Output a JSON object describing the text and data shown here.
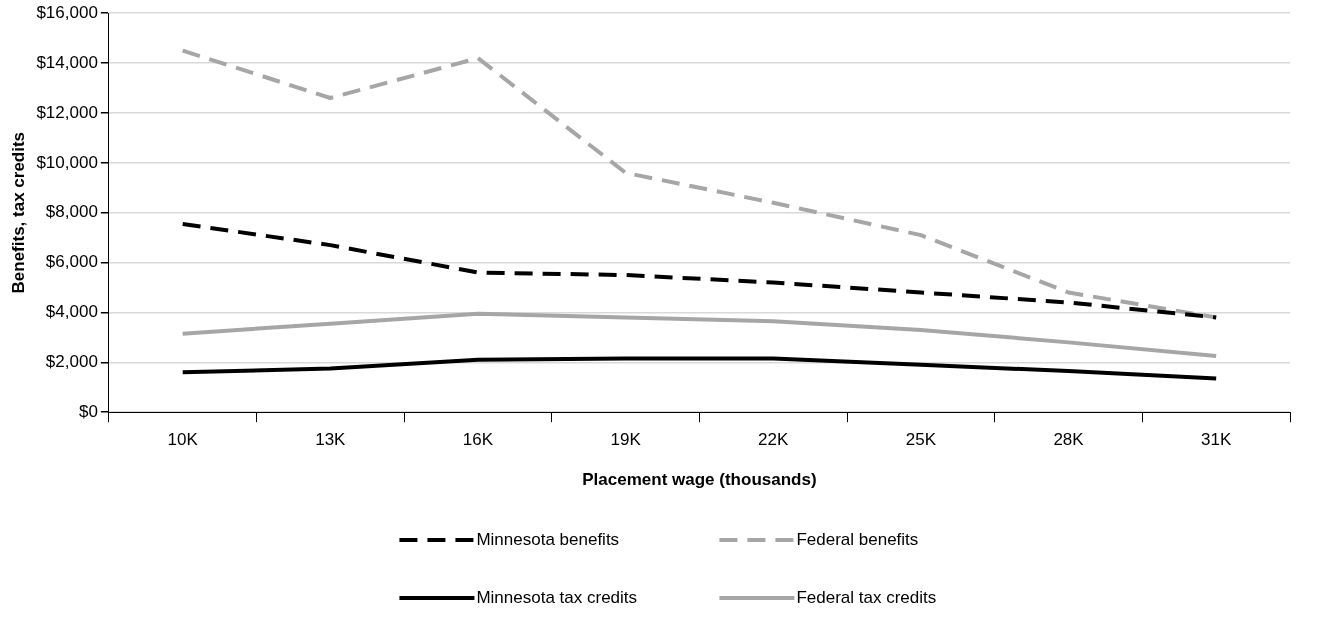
{
  "chart_data": {
    "type": "line",
    "xlabel": "Placement wage (thousands)",
    "ylabel": "Benefits, tax credits",
    "categories": [
      "10K",
      "13K",
      "16K",
      "19K",
      "22K",
      "25K",
      "28K",
      "31K"
    ],
    "series": [
      {
        "name": "Minnesota benefits",
        "color": "#000000",
        "line_style": "dashed",
        "values": [
          7550,
          6700,
          5600,
          5500,
          5200,
          4800,
          4400,
          3800
        ]
      },
      {
        "name": "Federal benefits",
        "color": "#a6a6a6",
        "line_style": "dashed",
        "values": [
          14500,
          12600,
          14200,
          9600,
          8400,
          7100,
          4800,
          3800
        ]
      },
      {
        "name": "Minnesota tax credits",
        "color": "#000000",
        "line_style": "solid",
        "values": [
          1600,
          1750,
          2100,
          2150,
          2150,
          1900,
          1650,
          1350
        ]
      },
      {
        "name": "Federal tax credits",
        "color": "#a6a6a6",
        "line_style": "solid",
        "values": [
          3150,
          3550,
          3950,
          3800,
          3650,
          3300,
          2800,
          2250
        ]
      }
    ],
    "ylim": [
      0,
      16000
    ],
    "yticks": [
      {
        "value": 0,
        "label": "$0"
      },
      {
        "value": 2000,
        "label": "$2,000"
      },
      {
        "value": 4000,
        "label": "$4,000"
      },
      {
        "value": 6000,
        "label": "$6,000"
      },
      {
        "value": 8000,
        "label": "$8,000"
      },
      {
        "value": 10000,
        "label": "$10,000"
      },
      {
        "value": 12000,
        "label": "$12,000"
      },
      {
        "value": 14000,
        "label": "$14,000"
      },
      {
        "value": 16000,
        "label": "$16,000"
      }
    ],
    "grid": "y",
    "legend": "bottom",
    "marker": "none"
  }
}
